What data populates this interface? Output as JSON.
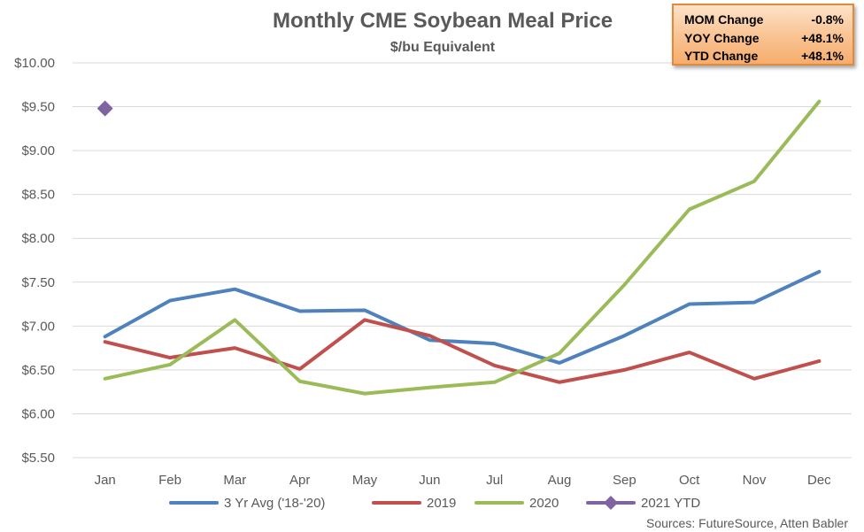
{
  "chart_data": {
    "type": "line",
    "title": "Monthly CME Soybean Meal Price",
    "subtitle": "$/bu Equivalent",
    "categories": [
      "Jan",
      "Feb",
      "Mar",
      "Apr",
      "May",
      "Jun",
      "Jul",
      "Aug",
      "Sep",
      "Oct",
      "Nov",
      "Dec"
    ],
    "ylim": [
      5.5,
      10.0
    ],
    "yticks": [
      5.5,
      6.0,
      6.5,
      7.0,
      7.5,
      8.0,
      8.5,
      9.0,
      9.5,
      10.0
    ],
    "ytick_labels": [
      "$5.50",
      "$6.00",
      "$6.50",
      "$7.00",
      "$7.50",
      "$8.00",
      "$8.50",
      "$9.00",
      "$9.50",
      "$10.00"
    ],
    "grid": true,
    "legend_position": "bottom",
    "series": [
      {
        "name": "3 Yr Avg ('18-'20)",
        "color": "#4f81bd",
        "marker": "none",
        "values": [
          6.88,
          7.29,
          7.42,
          7.17,
          7.18,
          6.84,
          6.8,
          6.58,
          6.89,
          7.25,
          7.27,
          7.62
        ]
      },
      {
        "name": "2019",
        "color": "#c0504d",
        "marker": "none",
        "values": [
          6.82,
          6.64,
          6.75,
          6.51,
          7.07,
          6.89,
          6.55,
          6.36,
          6.5,
          6.7,
          6.4,
          6.6
        ]
      },
      {
        "name": "2020",
        "color": "#9bbb59",
        "marker": "none",
        "values": [
          6.4,
          6.56,
          7.07,
          6.37,
          6.23,
          6.3,
          6.36,
          6.69,
          7.47,
          8.33,
          8.65,
          9.56
        ]
      },
      {
        "name": "2021 YTD",
        "color": "#8064a2",
        "marker": "diamond",
        "values": [
          9.48,
          null,
          null,
          null,
          null,
          null,
          null,
          null,
          null,
          null,
          null,
          null
        ]
      }
    ],
    "source": "Sources: FutureSource, Atten Babler"
  },
  "change_box": {
    "rows": [
      {
        "label": "MOM Change",
        "value": "-0.8%"
      },
      {
        "label": "YOY Change",
        "value": "+48.1%"
      },
      {
        "label": "YTD Change",
        "value": "+48.1%"
      }
    ]
  }
}
